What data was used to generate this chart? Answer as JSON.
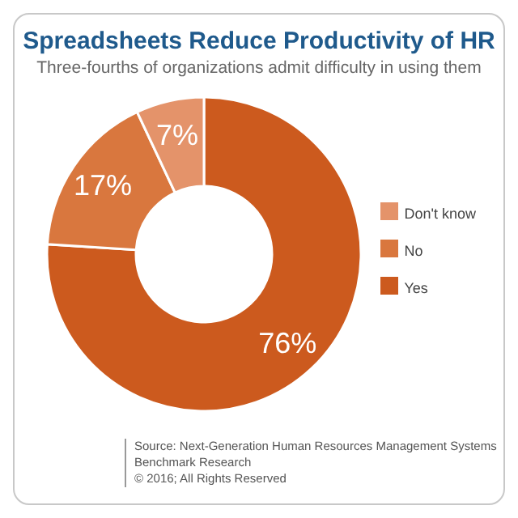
{
  "chart_data": {
    "type": "donut",
    "title": "Spreadsheets Reduce Productivity of HR",
    "subtitle": "Three-fourths of organizations admit difficulty in using them",
    "categories": [
      "Yes",
      "No",
      "Don't know"
    ],
    "values": [
      76,
      17,
      7
    ],
    "value_labels": [
      "76%",
      "17%",
      "7%"
    ],
    "colors": [
      "#cc5a1e",
      "#d9773e",
      "#e4936a"
    ],
    "legend": "right",
    "annotations": [
      "Source: Next-Generation Human Resources Management Systems Benchmark Research",
      "© 2016; All Rights Reserved"
    ]
  }
}
